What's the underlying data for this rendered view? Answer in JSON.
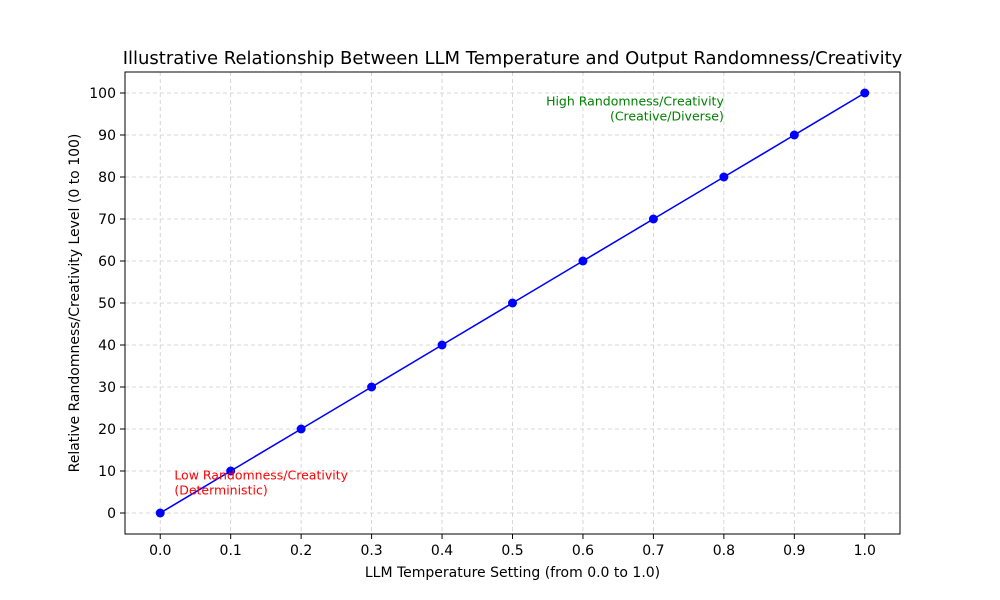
{
  "chart_data": {
    "type": "line",
    "title": "Illustrative Relationship Between LLM Temperature and Output Randomness/Creativity",
    "xlabel": "LLM Temperature Setting (from 0.0 to 1.0)",
    "ylabel": "Relative Randomness/Creativity Level (0 to 100)",
    "x": [
      0.0,
      0.1,
      0.2,
      0.3,
      0.4,
      0.5,
      0.6,
      0.7,
      0.8,
      0.9,
      1.0
    ],
    "series": [
      {
        "values": [
          0,
          10,
          20,
          30,
          40,
          50,
          60,
          70,
          80,
          90,
          100
        ],
        "color": "#0000ff",
        "marker": "circle"
      }
    ],
    "xlim": [
      -0.05,
      1.05
    ],
    "ylim": [
      -5,
      105
    ],
    "xticks": [
      0.0,
      0.1,
      0.2,
      0.3,
      0.4,
      0.5,
      0.6,
      0.7,
      0.8,
      0.9,
      1.0
    ],
    "xtick_labels": [
      "0.0",
      "0.1",
      "0.2",
      "0.3",
      "0.4",
      "0.5",
      "0.6",
      "0.7",
      "0.8",
      "0.9",
      "1.0"
    ],
    "yticks": [
      0,
      10,
      20,
      30,
      40,
      50,
      60,
      70,
      80,
      90,
      100
    ],
    "ytick_labels": [
      "0",
      "10",
      "20",
      "30",
      "40",
      "50",
      "60",
      "70",
      "80",
      "90",
      "100"
    ],
    "grid": true,
    "annotations": [
      {
        "lines": [
          "Low Randomness/Creativity",
          "(Deterministic)"
        ],
        "x": 0.02,
        "y": 8,
        "align": "left",
        "color": "#ff0000"
      },
      {
        "lines": [
          "High Randomness/Creativity",
          "(Creative/Diverse)"
        ],
        "x": 0.8,
        "y": 97,
        "align": "right",
        "color": "#008000"
      }
    ]
  }
}
